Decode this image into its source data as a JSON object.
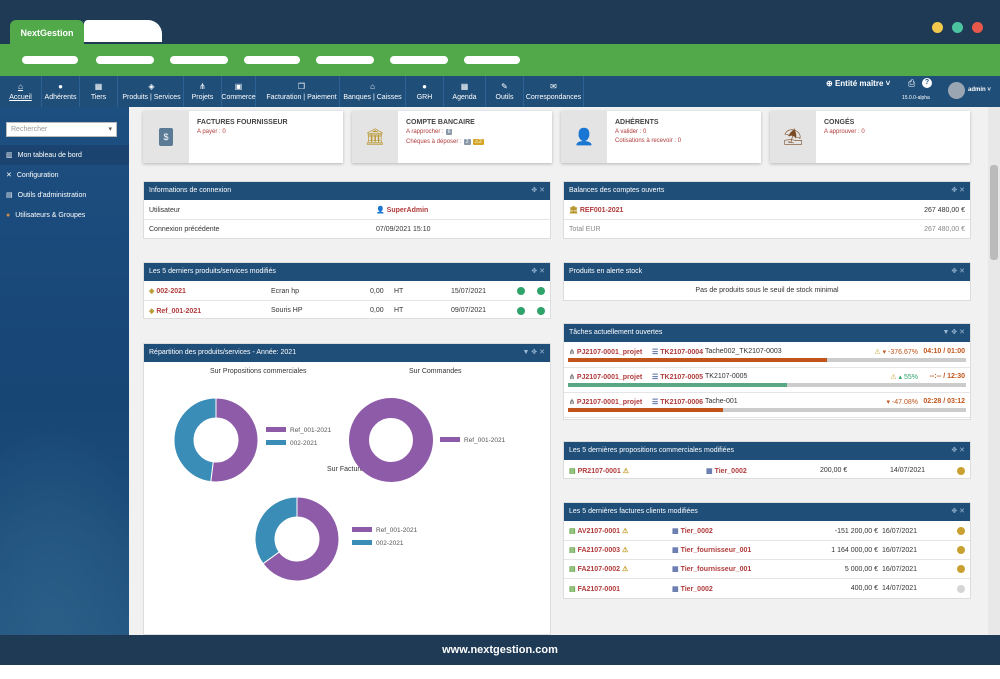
{
  "app": {
    "tab_label": "NextGestion",
    "footer": "www.nextgestion.com"
  },
  "nav": {
    "items": [
      {
        "label": "Accueil",
        "icon": "home-icon",
        "glyph": "⌂"
      },
      {
        "label": "Adhérents",
        "icon": "user-icon",
        "glyph": "●"
      },
      {
        "label": "Tiers",
        "icon": "building-icon",
        "glyph": "▦"
      },
      {
        "label": "Produits | Services",
        "icon": "box-icon",
        "glyph": "◈"
      },
      {
        "label": "Projets",
        "icon": "sitemap-icon",
        "glyph": "⋔"
      },
      {
        "label": "Commerce",
        "icon": "briefcase-icon",
        "glyph": "▣"
      },
      {
        "label": "Facturation | Paiement",
        "icon": "copy-icon",
        "glyph": "❐"
      },
      {
        "label": "Banques | Caisses",
        "icon": "bank-icon",
        "glyph": "⌂"
      },
      {
        "label": "GRH",
        "icon": "user-tie-icon",
        "glyph": "●"
      },
      {
        "label": "Agenda",
        "icon": "calendar-icon",
        "glyph": "▦"
      },
      {
        "label": "Outils",
        "icon": "wrench-icon",
        "glyph": "✎"
      },
      {
        "label": "Correspondances",
        "icon": "mail-icon",
        "glyph": "✉"
      }
    ],
    "entity": "Entité maître",
    "version": "15.0.0-alpha",
    "user": "admin"
  },
  "sidebar": {
    "search_placeholder": "Rechercher",
    "items": [
      {
        "label": "Mon tableau de bord",
        "icon": "chart-icon",
        "glyph": "▥"
      },
      {
        "label": "Configuration",
        "icon": "tools-icon",
        "glyph": "✕"
      },
      {
        "label": "Outils d'administration",
        "icon": "server-icon",
        "glyph": "▤"
      },
      {
        "label": "Utilisateurs & Groupes",
        "icon": "users-icon",
        "glyph": "●"
      }
    ]
  },
  "cards": [
    {
      "title": "FACTURES FOURNISSEUR",
      "icon": "invoice-icon",
      "glyph": "$",
      "lines": [
        "A payer : 0"
      ]
    },
    {
      "title": "COMPTE BANCAIRE",
      "icon": "bank-icon",
      "glyph": "🏛",
      "lines": [
        "A rapprocher :",
        "Chèques à déposer :"
      ],
      "badges": [
        "6",
        "2",
        "2"
      ]
    },
    {
      "title": "ADHÉRENTS",
      "icon": "member-icon",
      "glyph": "👤",
      "lines": [
        "A valider : 0",
        "Cotisations à recevoir : 0"
      ]
    },
    {
      "title": "CONGÉS",
      "icon": "umbrella-icon",
      "glyph": "⛱",
      "lines": [
        "A approuver : 0"
      ]
    }
  ],
  "login_info": {
    "title": "Informations de connexion",
    "rows": [
      {
        "label": "Utilisateur",
        "value": "SuperAdmin"
      },
      {
        "label": "Connexion précédente",
        "value": "07/09/2021 15:10"
      }
    ]
  },
  "balances": {
    "title": "Balances des comptes ouverts",
    "rows": [
      {
        "label": "REF001-2021",
        "value": "267 480,00 €"
      },
      {
        "label": "Total EUR",
        "value": "267 480,00 €"
      }
    ]
  },
  "last_products": {
    "title": "Les 5 derniers produits/services modifiés",
    "rows": [
      {
        "ref": "002-2021",
        "label": "Ecran hp",
        "price": "0,00",
        "tax": "HT",
        "date": "15/07/2021"
      },
      {
        "ref": "Ref_001-2021",
        "label": "Souris HP",
        "price": "0,00",
        "tax": "HT",
        "date": "09/07/2021"
      }
    ]
  },
  "stock_alert": {
    "title": "Produits en alerte stock",
    "message": "Pas de produits sous le seuil de stock minimal"
  },
  "distribution": {
    "title": "Répartition des produits/services - Année: 2021",
    "charts": [
      {
        "title": "Sur Propositions commerciales",
        "legend": [
          "Ref_001-2021",
          "002-2021"
        ]
      },
      {
        "title": "Sur Commandes",
        "legend": [
          "Ref_001-2021"
        ]
      },
      {
        "title": "Sur Factures",
        "legend": [
          "Ref_001-2021",
          "002-2021"
        ]
      }
    ]
  },
  "chart_data": [
    {
      "type": "pie",
      "title": "Sur Propositions commerciales",
      "categories": [
        "Ref_001-2021",
        "002-2021"
      ],
      "values": [
        52,
        48
      ],
      "colors": [
        "#8e5ba8",
        "#3a8db6"
      ]
    },
    {
      "type": "pie",
      "title": "Sur Commandes",
      "categories": [
        "Ref_001-2021"
      ],
      "values": [
        100
      ],
      "colors": [
        "#8e5ba8"
      ]
    },
    {
      "type": "pie",
      "title": "Sur Factures",
      "categories": [
        "Ref_001-2021",
        "002-2021"
      ],
      "values": [
        65,
        35
      ],
      "colors": [
        "#8e5ba8",
        "#3a8db6"
      ]
    }
  ],
  "tasks": {
    "title": "Tâches actuellement ouvertes",
    "rows": [
      {
        "project": "PJ2107-0001_projet",
        "task": "TK2107-0004",
        "label": "Tache002_TK2107-0003",
        "pct": "-376.67%",
        "time": "04:10 / 01:00",
        "progress": 0.65,
        "color": "#c0541a"
      },
      {
        "project": "PJ2107-0001_projet",
        "task": "TK2107-0005",
        "label": "TK2107-0005",
        "pct": "55%",
        "time": "--:-- / 12:30",
        "progress": 0.55,
        "color": "#5aa786"
      },
      {
        "project": "PJ2107-0001_projet",
        "task": "TK2107-0006",
        "label": "Tache-001",
        "pct": "-47.08%",
        "time": "02:28 / 03:12",
        "progress": 0.39,
        "color": "#c0541a"
      }
    ]
  },
  "proposals": {
    "title": "Les 5 dernières propositions commerciales modifiées",
    "rows": [
      {
        "ref": "PR2107-0001",
        "tier": "Tier_0002",
        "amount": "200,00 €",
        "date": "14/07/2021"
      }
    ]
  },
  "invoices": {
    "title": "Les 5 dernières factures clients modifiées",
    "rows": [
      {
        "ref": "AV2107-0001",
        "tier": "Tier_0002",
        "amount": "-151 200,00 €",
        "date": "16/07/2021",
        "warn": true,
        "status": "#c9a132"
      },
      {
        "ref": "FA2107-0003",
        "tier": "Tier_fournisseur_001",
        "amount": "1 164 000,00 €",
        "date": "16/07/2021",
        "warn": true,
        "status": "#c9a132"
      },
      {
        "ref": "FA2107-0002",
        "tier": "Tier_fournisseur_001",
        "amount": "5 000,00 €",
        "date": "16/07/2021",
        "warn": true,
        "status": "#c9a132"
      },
      {
        "ref": "FA2107-0001",
        "tier": "Tier_0002",
        "amount": "400,00 €",
        "date": "14/07/2021",
        "warn": false,
        "status": "#d5d5d5"
      }
    ]
  },
  "colors": {
    "nav": "#1f4e79",
    "green": "#52a94a",
    "status_green": "#2ea36a"
  }
}
